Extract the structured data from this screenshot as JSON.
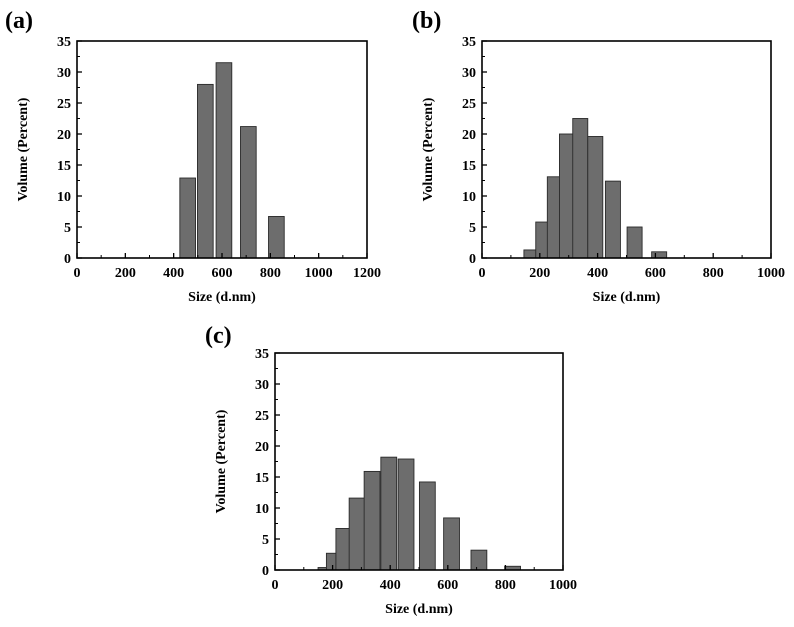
{
  "chart_data": [
    {
      "type": "bar",
      "panel": "(a)",
      "xlabel": "Size (d.nm)",
      "ylabel": "Volume (Percent)",
      "xlim": [
        0,
        1200
      ],
      "ylim": [
        0,
        35
      ],
      "xticks": [
        0,
        200,
        400,
        600,
        800,
        1000,
        1200
      ],
      "yticks": [
        0,
        5,
        10,
        15,
        20,
        25,
        30,
        35
      ],
      "bin_width": 65,
      "x": [
        458,
        531,
        608,
        709,
        825
      ],
      "values": [
        12.9,
        28.0,
        31.5,
        21.2,
        6.7
      ]
    },
    {
      "type": "bar",
      "panel": "(b)",
      "xlabel": "Size (d.nm)",
      "ylabel": "Volume (Percent)",
      "xlim": [
        0,
        1000
      ],
      "ylim": [
        0,
        35
      ],
      "xticks": [
        0,
        200,
        400,
        600,
        800,
        1000
      ],
      "yticks": [
        0,
        5,
        10,
        15,
        20,
        25,
        30,
        35
      ],
      "bin_width": 52,
      "x": [
        171,
        212,
        252,
        294,
        340,
        392,
        453,
        528,
        613
      ],
      "values": [
        1.3,
        5.8,
        13.1,
        20.0,
        22.5,
        19.6,
        12.4,
        5.0,
        1.0
      ]
    },
    {
      "type": "bar",
      "panel": "(c)",
      "xlabel": "Size (d.nm)",
      "ylabel": "Volume (Percent)",
      "xlim": [
        0,
        1000
      ],
      "ylim": [
        0,
        35
      ],
      "xticks": [
        0,
        200,
        400,
        600,
        800,
        1000
      ],
      "yticks": [
        0,
        5,
        10,
        15,
        20,
        25,
        30,
        35
      ],
      "bin_width": 55,
      "x": [
        177,
        206,
        239,
        285,
        337,
        395,
        455,
        529,
        613,
        708,
        825
      ],
      "values": [
        0.4,
        2.7,
        6.7,
        11.6,
        15.9,
        18.2,
        17.9,
        14.2,
        8.4,
        3.2,
        0.6
      ]
    }
  ]
}
